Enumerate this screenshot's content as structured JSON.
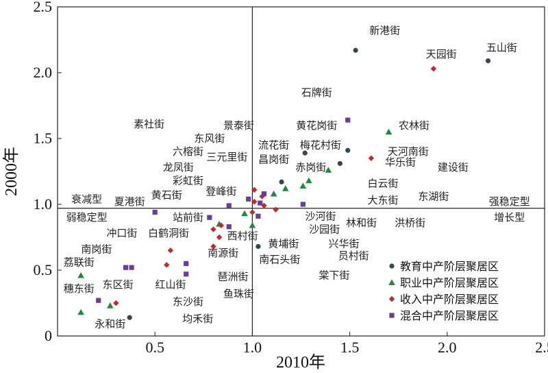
{
  "chart_data": {
    "type": "scatter",
    "xlabel": "2010年",
    "ylabel": "2000年",
    "xlim": [
      0,
      2.5
    ],
    "ylim": [
      0,
      2.5
    ],
    "xticks": [
      "0.5",
      "1.0",
      "1.5",
      "2.0",
      "2.5"
    ],
    "yticks": [
      "0",
      "0.5",
      "1.0",
      "1.5",
      "2.0",
      "2.5"
    ],
    "reference_lines": {
      "x": 1.0,
      "y": 0.97
    },
    "legend_position": "bottom-right",
    "series": [
      {
        "name": "教育中产阶层聚居区",
        "marker": "circle",
        "color": "#37474f",
        "points": [
          [
            1.53,
            2.17
          ],
          [
            2.21,
            2.09
          ],
          [
            1.27,
            1.39
          ],
          [
            1.49,
            1.41
          ],
          [
            1.45,
            1.31
          ],
          [
            1.15,
            1.17
          ],
          [
            1.03,
            0.68
          ],
          [
            0.37,
            0.14
          ]
        ]
      },
      {
        "name": "职业中产阶层聚居区",
        "marker": "triangle",
        "color": "#1e8a3a",
        "points": [
          [
            1.7,
            1.55
          ],
          [
            1.39,
            1.26
          ],
          [
            1.29,
            1.18
          ],
          [
            1.26,
            1.14
          ],
          [
            1.17,
            1.12
          ],
          [
            1.11,
            1.08
          ],
          [
            0.96,
            0.93
          ],
          [
            1.0,
            0.84
          ],
          [
            0.83,
            0.85
          ],
          [
            0.12,
            0.46
          ],
          [
            0.12,
            0.18
          ],
          [
            0.27,
            0.23
          ]
        ]
      },
      {
        "name": "收入中产阶层聚居区",
        "marker": "diamond",
        "color": "#c62828",
        "points": [
          [
            1.93,
            2.03
          ],
          [
            1.61,
            1.35
          ],
          [
            1.01,
            1.11
          ],
          [
            1.05,
            1.06
          ],
          [
            1.01,
            1.02
          ],
          [
            1.06,
            0.99
          ],
          [
            1.12,
            0.96
          ],
          [
            1.0,
            0.94
          ],
          [
            0.84,
            0.84
          ],
          [
            0.8,
            0.81
          ],
          [
            0.83,
            0.75
          ],
          [
            0.8,
            0.68
          ],
          [
            0.58,
            0.65
          ],
          [
            0.56,
            0.54
          ],
          [
            0.3,
            0.25
          ]
        ]
      },
      {
        "name": "混合中产阶层聚居区",
        "marker": "square",
        "color": "#6a3d9a",
        "points": [
          [
            1.49,
            1.64
          ],
          [
            0.98,
            1.04
          ],
          [
            1.04,
            1.01
          ],
          [
            1.06,
            1.08
          ],
          [
            0.88,
            0.99
          ],
          [
            1.26,
            1.0
          ],
          [
            0.5,
            0.94
          ],
          [
            0.78,
            0.9
          ],
          [
            1.03,
            0.91
          ],
          [
            0.88,
            0.83
          ],
          [
            0.66,
            0.55
          ],
          [
            0.66,
            0.47
          ],
          [
            0.35,
            0.52
          ],
          [
            0.38,
            0.52
          ],
          [
            0.21,
            0.27
          ]
        ]
      }
    ],
    "point_labels": [
      {
        "text": "新港街",
        "x": 1.68,
        "y": 2.32
      },
      {
        "text": "五山街",
        "x": 2.28,
        "y": 2.19
      },
      {
        "text": "天园街",
        "x": 1.97,
        "y": 2.14
      },
      {
        "text": "石牌街",
        "x": 1.33,
        "y": 1.85
      },
      {
        "text": "素社街",
        "x": 0.47,
        "y": 1.61
      },
      {
        "text": "景泰街",
        "x": 0.93,
        "y": 1.6
      },
      {
        "text": "黄花岗街",
        "x": 1.33,
        "y": 1.6
      },
      {
        "text": "农林街",
        "x": 1.83,
        "y": 1.6
      },
      {
        "text": "东风街",
        "x": 0.78,
        "y": 1.5
      },
      {
        "text": "流花街",
        "x": 1.11,
        "y": 1.45
      },
      {
        "text": "梅花村街",
        "x": 1.35,
        "y": 1.45
      },
      {
        "text": "六榕街",
        "x": 0.67,
        "y": 1.4
      },
      {
        "text": "三元里街",
        "x": 0.87,
        "y": 1.36
      },
      {
        "text": "天河南街",
        "x": 1.8,
        "y": 1.4
      },
      {
        "text": "昌岗街",
        "x": 1.11,
        "y": 1.34
      },
      {
        "text": "华乐街",
        "x": 1.76,
        "y": 1.32
      },
      {
        "text": "龙凤街",
        "x": 0.62,
        "y": 1.28
      },
      {
        "text": "赤岗街",
        "x": 1.3,
        "y": 1.28
      },
      {
        "text": "建设街",
        "x": 2.03,
        "y": 1.28
      },
      {
        "text": "彩虹街",
        "x": 0.67,
        "y": 1.18
      },
      {
        "text": "白云街",
        "x": 1.67,
        "y": 1.16
      },
      {
        "text": "登峰街",
        "x": 0.84,
        "y": 1.1
      },
      {
        "text": "黄石街",
        "x": 0.56,
        "y": 1.07
      },
      {
        "text": "东湖街",
        "x": 1.93,
        "y": 1.06
      },
      {
        "text": "衰减型",
        "x": 0.15,
        "y": 1.04
      },
      {
        "text": "夏港街",
        "x": 0.37,
        "y": 1.02
      },
      {
        "text": "大东街",
        "x": 1.67,
        "y": 1.03
      },
      {
        "text": "强稳定型",
        "x": 2.32,
        "y": 1.02
      },
      {
        "text": "弱稳定型",
        "x": 0.15,
        "y": 0.9
      },
      {
        "text": "站前街",
        "x": 0.67,
        "y": 0.9
      },
      {
        "text": "沙河街",
        "x": 1.35,
        "y": 0.91
      },
      {
        "text": "增长型",
        "x": 2.32,
        "y": 0.9
      },
      {
        "text": "林和街",
        "x": 1.56,
        "y": 0.86
      },
      {
        "text": "洪桥街",
        "x": 1.81,
        "y": 0.86
      },
      {
        "text": "沙园街",
        "x": 1.37,
        "y": 0.81
      },
      {
        "text": "冲口街",
        "x": 0.33,
        "y": 0.78
      },
      {
        "text": "白鹤洞街",
        "x": 0.57,
        "y": 0.78
      },
      {
        "text": "西村街",
        "x": 0.95,
        "y": 0.76
      },
      {
        "text": "兴华街",
        "x": 1.47,
        "y": 0.7
      },
      {
        "text": "黄埔街",
        "x": 1.16,
        "y": 0.7
      },
      {
        "text": "南岗街",
        "x": 0.2,
        "y": 0.66
      },
      {
        "text": "南源街",
        "x": 0.85,
        "y": 0.63
      },
      {
        "text": "员村街",
        "x": 1.52,
        "y": 0.61
      },
      {
        "text": "南石头街",
        "x": 1.14,
        "y": 0.58
      },
      {
        "text": "荔联街",
        "x": 0.11,
        "y": 0.56
      },
      {
        "text": "琶洲街",
        "x": 0.9,
        "y": 0.45
      },
      {
        "text": "棠下街",
        "x": 1.42,
        "y": 0.46
      },
      {
        "text": "穗东街",
        "x": 0.11,
        "y": 0.36
      },
      {
        "text": "东区街",
        "x": 0.31,
        "y": 0.39
      },
      {
        "text": "红山街",
        "x": 0.58,
        "y": 0.39
      },
      {
        "text": "鱼珠街",
        "x": 0.93,
        "y": 0.32
      },
      {
        "text": "东沙街",
        "x": 0.67,
        "y": 0.26
      },
      {
        "text": "永和街",
        "x": 0.27,
        "y": 0.09
      },
      {
        "text": "均禾街",
        "x": 0.72,
        "y": 0.13
      }
    ]
  }
}
